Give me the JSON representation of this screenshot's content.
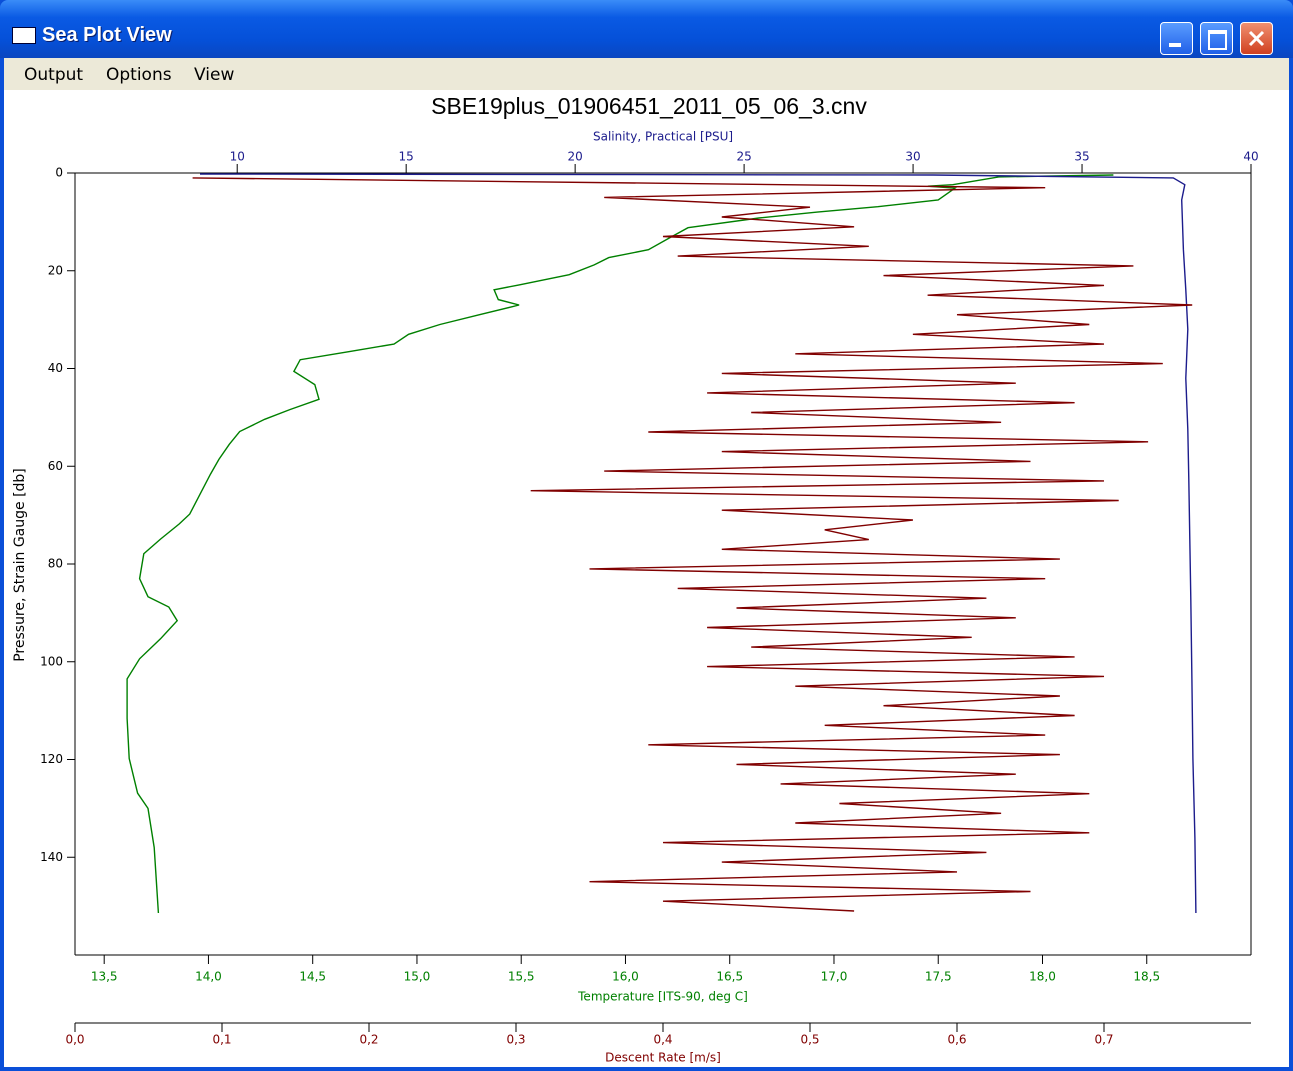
{
  "window": {
    "title": "Sea Plot View",
    "menu": [
      "Output",
      "Options",
      "View"
    ]
  },
  "chart_data": {
    "type": "line",
    "title": "SBE19plus_01906451_2011_05_06_3.cnv",
    "y_label": "Pressure, Strain Gauge [db]",
    "ylim": [
      0,
      160
    ],
    "y_reversed": true,
    "yticks": [
      0,
      20,
      40,
      60,
      80,
      100,
      120,
      140
    ],
    "series": [
      {
        "label": "Temperature [ITS-90, deg C]",
        "color": "#008000",
        "axis_side": "bottom",
        "xlim": [
          13.36,
          19.0
        ],
        "xticks": [
          {
            "value": 13.5,
            "label": "13,5"
          },
          {
            "value": 14.0,
            "label": "14,0"
          },
          {
            "value": 14.5,
            "label": "14,5"
          },
          {
            "value": 15.0,
            "label": "15,0"
          },
          {
            "value": 15.5,
            "label": "15,5"
          },
          {
            "value": 16.0,
            "label": "16,0"
          },
          {
            "value": 16.5,
            "label": "16,5"
          },
          {
            "value": 17.0,
            "label": "17,0"
          },
          {
            "value": 17.5,
            "label": "17,5"
          },
          {
            "value": 18.0,
            "label": "18,0"
          },
          {
            "value": 18.5,
            "label": "18,5"
          }
        ],
        "pressure": [
          0.4,
          0.8,
          2.4,
          2.7,
          3.1,
          5.5,
          6.9,
          8,
          9.2,
          11.2,
          13.3,
          15.7,
          17.3,
          18.8,
          20.8,
          22.9,
          23.9,
          25.9,
          27,
          29,
          31,
          33,
          35,
          36.5,
          38.2,
          40.6,
          43.3,
          46.3,
          48.4,
          50.4,
          52.9,
          55.5,
          58.6,
          61.6,
          65.7,
          69.8,
          71.8,
          74.9,
          77.9,
          83,
          86.7,
          88.8,
          91.6,
          95.3,
          99.4,
          103.5,
          111.6,
          119.8,
          126.9,
          130,
          138,
          151.4
        ],
        "values": [
          18.34,
          17.79,
          17.57,
          17.45,
          17.58,
          17.5,
          17.21,
          16.92,
          16.64,
          16.3,
          16.21,
          16.11,
          15.92,
          15.85,
          15.73,
          15.49,
          15.37,
          15.39,
          15.49,
          15.3,
          15.11,
          14.96,
          14.89,
          14.68,
          14.44,
          14.41,
          14.51,
          14.53,
          14.39,
          14.27,
          14.15,
          14.1,
          14.05,
          14.01,
          13.96,
          13.91,
          13.86,
          13.77,
          13.69,
          13.67,
          13.71,
          13.81,
          13.85,
          13.77,
          13.67,
          13.61,
          13.61,
          13.62,
          13.66,
          13.71,
          13.74,
          13.76
        ]
      },
      {
        "label": "Salinity, Practical [PSU]",
        "color": "#1c1c8c",
        "axis_side": "top",
        "xlim": [
          5.2,
          40
        ],
        "xticks": [
          10,
          15,
          20,
          25,
          30,
          35,
          40
        ],
        "pressure": [
          0.2,
          0.4,
          1,
          2.4,
          5.5,
          15.7,
          23.9,
          32,
          42,
          52.4,
          62.7,
          74.9,
          87.1,
          103.5,
          119.8,
          136,
          151.4
        ],
        "values": [
          8.9,
          30.6,
          37.7,
          38.04,
          37.95,
          38.0,
          38.07,
          38.13,
          38.07,
          38.13,
          38.16,
          38.19,
          38.22,
          38.25,
          38.28,
          38.34,
          38.37
        ]
      },
      {
        "label": "Descent Rate [m/s]",
        "color": "#800000",
        "axis_side": "bottom",
        "xlim": [
          0,
          0.8
        ],
        "xticks": [
          {
            "value": 0,
            "label": "0,0"
          },
          {
            "value": 0.1,
            "label": "0,1"
          },
          {
            "value": 0.2,
            "label": "0,2"
          },
          {
            "value": 0.3,
            "label": "0,3"
          },
          {
            "value": 0.4,
            "label": "0,4"
          },
          {
            "value": 0.5,
            "label": "0,5"
          },
          {
            "value": 0.6,
            "label": "0,6"
          },
          {
            "value": 0.7,
            "label": "0,7"
          }
        ],
        "pressure": [
          1,
          3,
          5,
          7,
          9,
          11,
          13,
          15,
          17,
          19,
          21,
          23,
          25,
          27,
          29,
          31,
          33,
          35,
          37,
          39,
          41,
          43,
          45,
          47,
          49,
          51,
          53,
          55,
          57,
          59,
          61,
          63,
          65,
          67,
          69,
          71,
          73,
          75,
          77,
          79,
          81,
          83,
          85,
          87,
          89,
          91,
          93,
          95,
          97,
          99,
          101,
          103,
          105,
          107,
          109,
          111,
          113,
          115,
          117,
          119,
          121,
          123,
          125,
          127,
          129,
          131,
          133,
          135,
          137,
          139,
          141,
          143,
          145,
          147,
          149,
          151
        ],
        "values": [
          0.08,
          0.66,
          0.36,
          0.5,
          0.44,
          0.53,
          0.4,
          0.54,
          0.41,
          0.72,
          0.55,
          0.7,
          0.58,
          0.76,
          0.6,
          0.69,
          0.57,
          0.7,
          0.49,
          0.74,
          0.44,
          0.64,
          0.43,
          0.68,
          0.46,
          0.63,
          0.39,
          0.73,
          0.44,
          0.65,
          0.36,
          0.7,
          0.31,
          0.71,
          0.44,
          0.57,
          0.51,
          0.54,
          0.44,
          0.67,
          0.35,
          0.66,
          0.41,
          0.62,
          0.45,
          0.64,
          0.43,
          0.61,
          0.46,
          0.68,
          0.43,
          0.7,
          0.49,
          0.67,
          0.55,
          0.68,
          0.51,
          0.66,
          0.39,
          0.67,
          0.45,
          0.64,
          0.48,
          0.69,
          0.52,
          0.63,
          0.49,
          0.69,
          0.4,
          0.62,
          0.44,
          0.6,
          0.35,
          0.65,
          0.4,
          0.53
        ]
      }
    ]
  }
}
